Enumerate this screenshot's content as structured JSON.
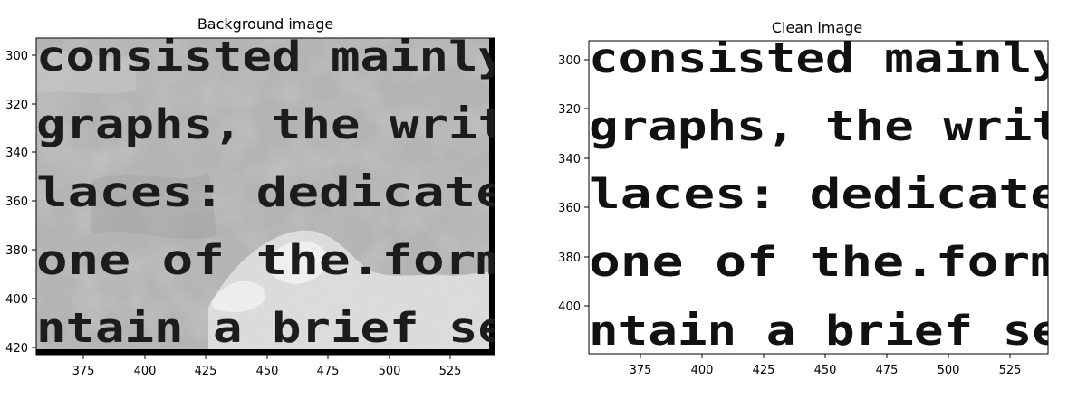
{
  "panels": [
    {
      "title": "Background image",
      "xticks": [
        "375",
        "400",
        "425",
        "450",
        "475",
        "500",
        "525"
      ],
      "yticks": [
        "300",
        "320",
        "340",
        "360",
        "380",
        "400",
        "420"
      ],
      "lines": [
        "consisted mainly",
        "graphs, the writ",
        "laces:  dedicate",
        " one of the.form",
        "ntain a brief se"
      ]
    },
    {
      "title": "Clean image",
      "xticks": [
        "375",
        "400",
        "425",
        "450",
        "475",
        "500",
        "525"
      ],
      "yticks": [
        "300",
        "320",
        "340",
        "360",
        "380",
        "400"
      ],
      "lines": [
        "consisted mainly",
        "graphs, the writ",
        "laces:  dedicate",
        " one of the.form",
        "ntain a brief se"
      ]
    }
  ]
}
